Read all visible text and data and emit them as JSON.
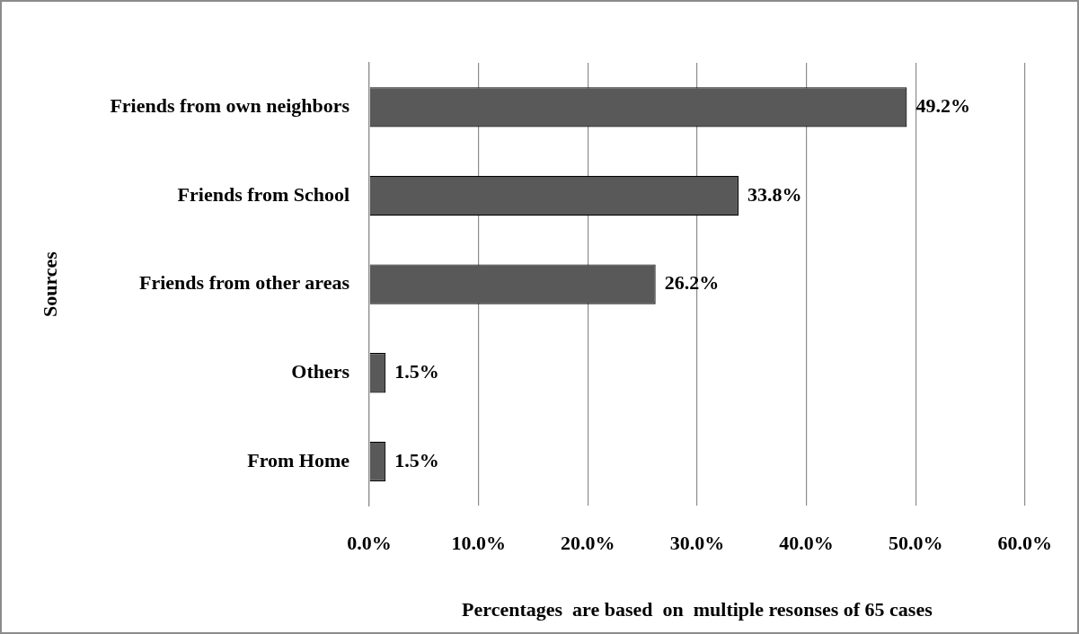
{
  "chart_data": {
    "type": "bar",
    "orientation": "horizontal",
    "categories": [
      "Friends from own neighbors",
      "Friends from School",
      "Friends from other areas",
      "Others",
      "From Home"
    ],
    "values": [
      49.2,
      33.8,
      26.2,
      1.5,
      1.5
    ],
    "value_labels": [
      "49.2%",
      "33.8%",
      "26.2%",
      "1.5%",
      "1.5%"
    ],
    "color": "#595959",
    "xlim": [
      0,
      60
    ],
    "xticks": [
      {
        "value": 0,
        "label": "0.0%"
      },
      {
        "value": 10,
        "label": "10.0%"
      },
      {
        "value": 20,
        "label": "20.0%"
      },
      {
        "value": 30,
        "label": "30.0%"
      },
      {
        "value": 40,
        "label": "40.0%"
      },
      {
        "value": 50,
        "label": "50.0%"
      },
      {
        "value": 60,
        "label": "60.0%"
      }
    ],
    "xlabel": "Percentages  are based  on  multiple resonses of 65 cases",
    "ylabel": "Sources",
    "grid": "x"
  }
}
